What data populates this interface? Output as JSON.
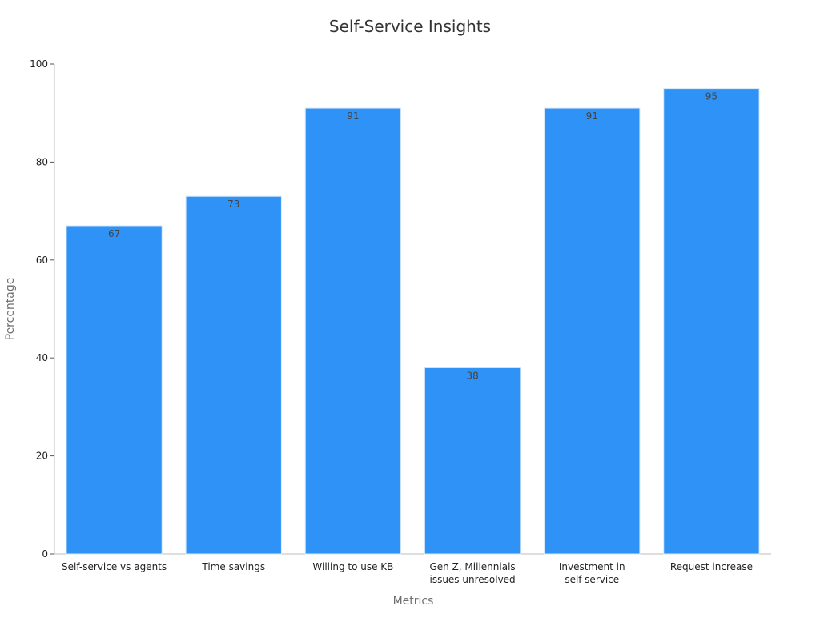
{
  "chart_data": {
    "type": "bar",
    "title": "Self-Service Insights",
    "xlabel": "Metrics",
    "ylabel": "Percentage",
    "categories": [
      [
        "Self-service vs agents"
      ],
      [
        "Time savings"
      ],
      [
        "Willing to use KB"
      ],
      [
        "Gen Z, Millennials",
        "issues unresolved"
      ],
      [
        "Investment in",
        "self-service"
      ],
      [
        "Request increase"
      ]
    ],
    "values": [
      67,
      73,
      91,
      38,
      91,
      95
    ],
    "ylim": [
      0,
      100
    ],
    "yticks": [
      0,
      20,
      40,
      60,
      80,
      100
    ],
    "grid": false,
    "data_labels": true,
    "bar_color": "#2f92f7"
  }
}
